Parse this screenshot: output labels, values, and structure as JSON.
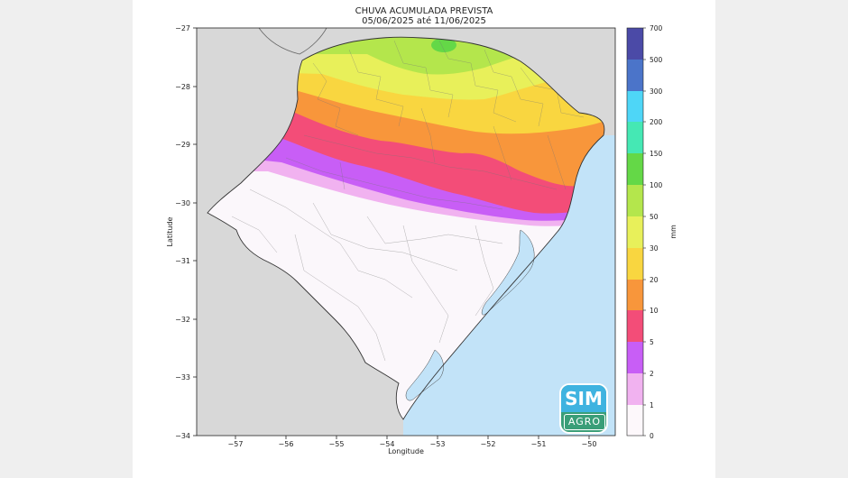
{
  "title": "CHUVA ACUMULADA PREVISTA",
  "subtitle": "05/06/2025 até 11/06/2025",
  "xlabel": "Longitude",
  "ylabel": "Latitude",
  "x_ticks": [
    "−57",
    "−56",
    "−55",
    "−54",
    "−53",
    "−52",
    "−51",
    "−50"
  ],
  "y_ticks": [
    "−27",
    "−28",
    "−29",
    "−30",
    "−31",
    "−32",
    "−33",
    "−34"
  ],
  "colorbar": {
    "unit": "mm",
    "levels": [
      "0",
      "1",
      "2",
      "5",
      "10",
      "20",
      "30",
      "50",
      "100",
      "150",
      "200",
      "300",
      "500",
      "700"
    ],
    "colors": [
      "#fdf8fb",
      "#f1b2f0",
      "#c85ef6",
      "#f34d78",
      "#f8963b",
      "#f9d640",
      "#e8f05a",
      "#b4e64c",
      "#64d847",
      "#45e8b4",
      "#4ed6f7",
      "#4b74c9",
      "#4b4aa7"
    ]
  },
  "map_colors": {
    "sea": "#c2e3f8",
    "neighbor_land": "#d8d8d8",
    "state_base": "#fbf7fb",
    "municipal_borders": "#777777"
  },
  "logo": {
    "top": "SIM",
    "bottom": "AGRO"
  }
}
